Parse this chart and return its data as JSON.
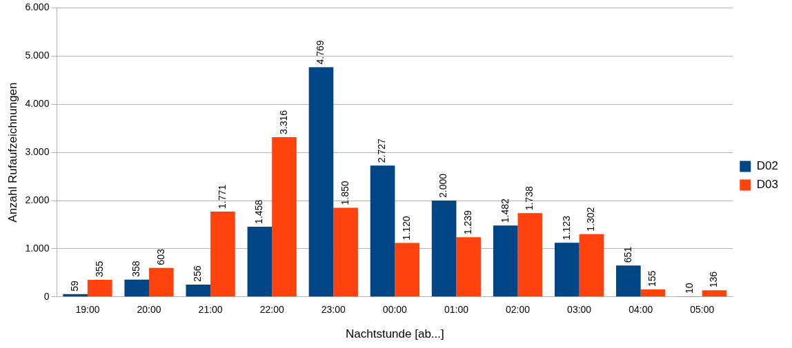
{
  "chart_data": {
    "type": "bar",
    "xlabel": "Nachtstunde [ab...]",
    "ylabel": "Anzahl Rufaufzeichnungen",
    "categories": [
      "19:00",
      "20:00",
      "21:00",
      "22:00",
      "23:00",
      "00:00",
      "01:00",
      "02:00",
      "03:00",
      "04:00",
      "05:00"
    ],
    "series": [
      {
        "name": "D02",
        "color": "#004586",
        "values": [
          59,
          358,
          256,
          1458,
          4769,
          2727,
          2000,
          1482,
          1123,
          651,
          10
        ],
        "value_labels": [
          "59",
          "358",
          "256",
          "1.458",
          "4.769",
          "2.727",
          "2.000",
          "1.482",
          "1.123",
          "651",
          "10"
        ]
      },
      {
        "name": "D03",
        "color": "#ff420e",
        "values": [
          355,
          603,
          1771,
          3316,
          1850,
          1120,
          1239,
          1738,
          1302,
          155,
          136
        ],
        "value_labels": [
          "355",
          "603",
          "1.771",
          "3.316",
          "1.850",
          "1.120",
          "1.239",
          "1.738",
          "1.302",
          "155",
          "136"
        ]
      }
    ],
    "ylim": [
      0,
      6000
    ],
    "yticks": [
      {
        "value": 0,
        "label": "0"
      },
      {
        "value": 1000,
        "label": "1.000"
      },
      {
        "value": 2000,
        "label": "2.000"
      },
      {
        "value": 3000,
        "label": "3.000"
      },
      {
        "value": 4000,
        "label": "4.000"
      },
      {
        "value": 5000,
        "label": "5.000"
      },
      {
        "value": 6000,
        "label": "6.000"
      }
    ],
    "grid": "y",
    "legend": "right"
  }
}
